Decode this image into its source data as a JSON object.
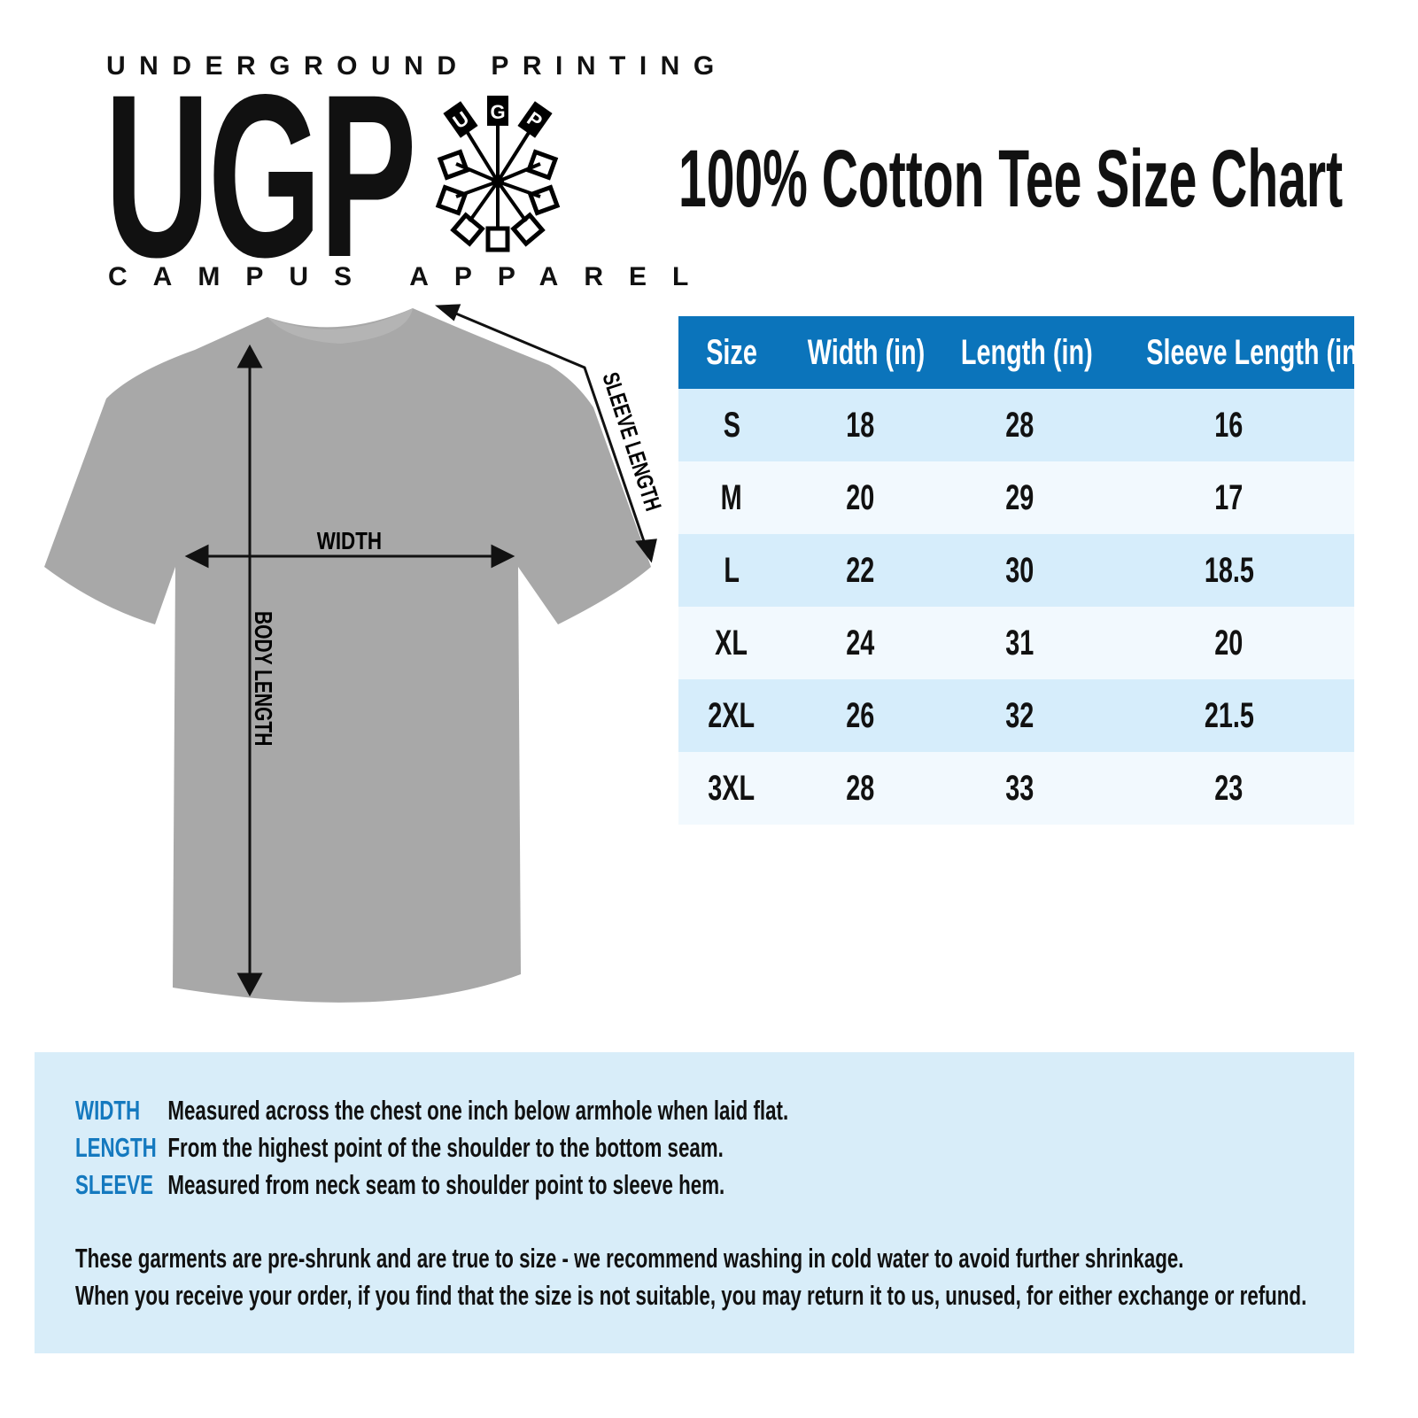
{
  "logo": {
    "top_line": "UNDERGROUND PRINTING",
    "mark": "UGP",
    "bottom_line": "CAMPUS APPAREL",
    "wheel_letters": [
      "U",
      "G",
      "P"
    ]
  },
  "title": "100% Cotton Tee Size Chart",
  "diagram": {
    "width_label": "WIDTH",
    "body_length_label": "BODY LENGTH",
    "sleeve_length_label": "SLEEVE LENGTH",
    "shirt_color": "#a8a8a8"
  },
  "table": {
    "headers": [
      "Size",
      "Width (in)",
      "Length (in)",
      "Sleeve Length (in)"
    ],
    "rows": [
      [
        "S",
        "18",
        "28",
        "16"
      ],
      [
        "M",
        "20",
        "29",
        "17"
      ],
      [
        "L",
        "22",
        "30",
        "18.5"
      ],
      [
        "XL",
        "24",
        "31",
        "20"
      ],
      [
        "2XL",
        "26",
        "32",
        "21.5"
      ],
      [
        "3XL",
        "28",
        "33",
        "23"
      ]
    ],
    "header_color": "#0b74bb"
  },
  "definitions": [
    {
      "term": "WIDTH",
      "text": "Measured across the chest one inch below armhole when laid flat."
    },
    {
      "term": "LENGTH",
      "text": "From the highest point of the shoulder to the bottom seam."
    },
    {
      "term": "SLEEVE",
      "text": "Measured from neck seam to shoulder point to sleeve hem."
    }
  ],
  "notes": [
    "These garments are pre-shrunk and are true to size - we recommend washing in cold water to avoid further shrinkage.",
    "When you receive your order, if you find that the size is not suitable, you may return it to us, unused, for either exchange or refund."
  ]
}
